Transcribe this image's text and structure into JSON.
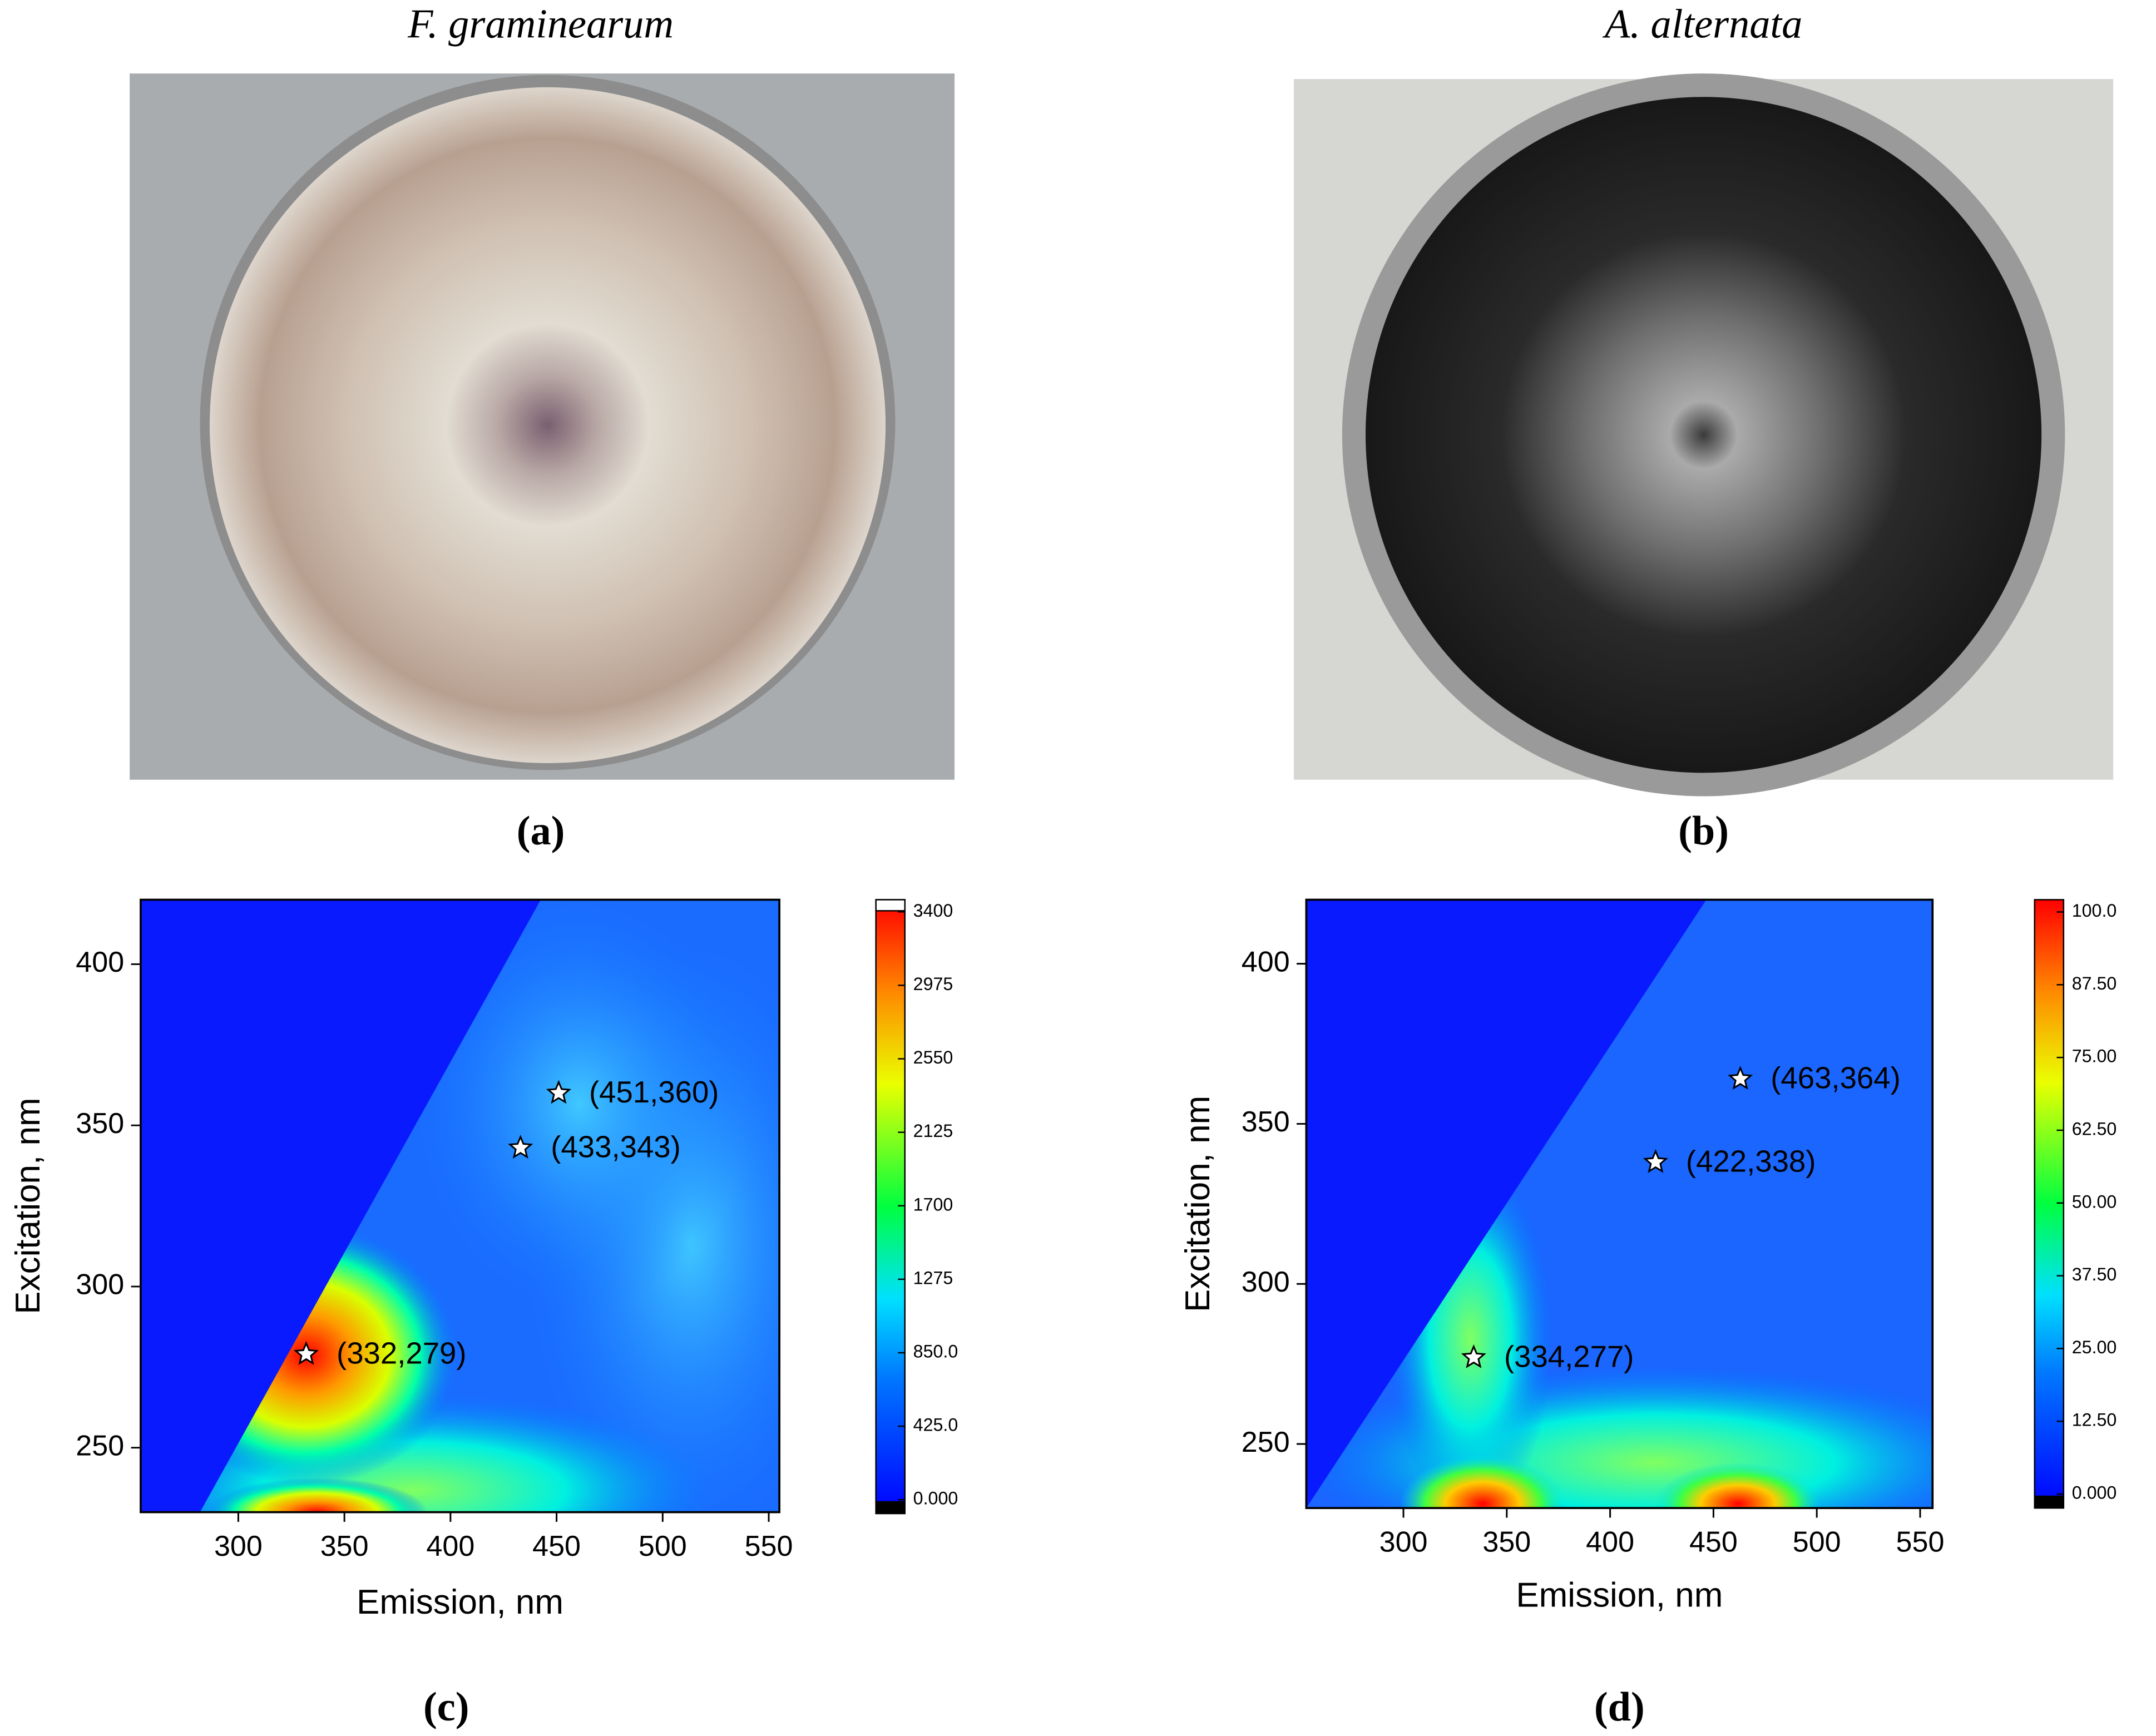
{
  "figure": {
    "panels": [
      {
        "title": "F. graminearum",
        "label": "(a)"
      },
      {
        "title": "A. alternata",
        "label": "(b)"
      }
    ]
  },
  "chart_data": [
    {
      "type": "contour",
      "label": "(c)",
      "xlabel": "Emission, nm",
      "ylabel": "Excitation, nm",
      "xlim": [
        254,
        555
      ],
      "ylim": [
        230,
        420
      ],
      "xticks": [
        300,
        350,
        400,
        450,
        500,
        550
      ],
      "yticks": [
        250,
        300,
        350,
        400
      ],
      "markers": {
        "x": [
          451,
          433,
          332
        ],
        "y": [
          360,
          343,
          279
        ],
        "labels": [
          "(451,360)",
          "(433,343)",
          "(332,279)"
        ]
      },
      "colorbar": {
        "lim": [
          -80,
          3470
        ],
        "ticks": [
          {
            "value": 0,
            "label": "0.000"
          },
          {
            "value": 425,
            "label": "425.0"
          },
          {
            "value": 850,
            "label": "850.0"
          },
          1275,
          1700,
          2125,
          2550,
          2975,
          3400
        ]
      }
    },
    {
      "type": "contour",
      "label": "(d)",
      "xlabel": "Emission, nm",
      "ylabel": "Excitation, nm",
      "xlim": [
        253,
        556
      ],
      "ylim": [
        230,
        420
      ],
      "xticks": [
        300,
        350,
        400,
        450,
        500,
        550
      ],
      "yticks": [
        250,
        300,
        350,
        400
      ],
      "markers": {
        "x": [
          463,
          422,
          334
        ],
        "y": [
          364,
          338,
          277
        ],
        "labels": [
          "(463,364)",
          "(422,338)",
          "(334,277)"
        ]
      },
      "colorbar": {
        "lim": [
          -2.4,
          102.1
        ],
        "ticks": [
          {
            "value": 0,
            "label": "0.000"
          },
          {
            "value": 12.5,
            "label": "12.50"
          },
          {
            "value": 25,
            "label": "25.00"
          },
          {
            "value": 37.5,
            "label": "37.50"
          },
          {
            "value": 50,
            "label": "50.00"
          },
          {
            "value": 62.5,
            "label": "62.50"
          },
          {
            "value": 75,
            "label": "75.00"
          },
          {
            "value": 87.5,
            "label": "87.50"
          },
          {
            "value": 100,
            "label": "100.0"
          }
        ]
      }
    }
  ]
}
